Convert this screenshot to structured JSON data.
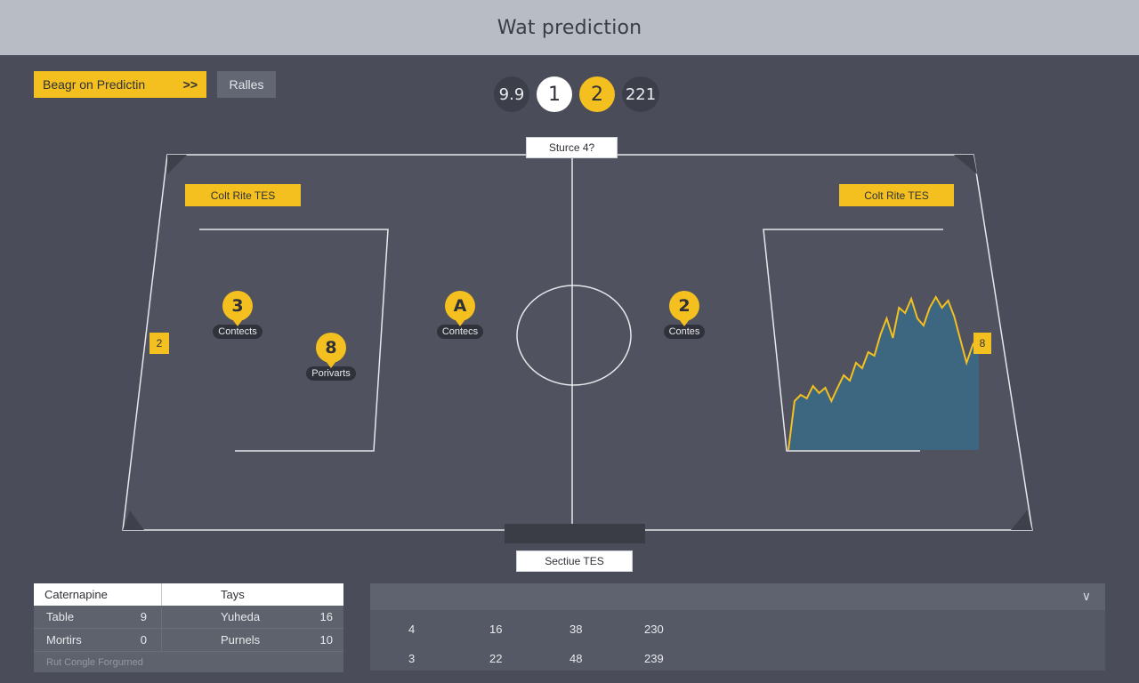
{
  "header": {
    "title": "Wat prediction"
  },
  "toolbar": {
    "primary_label": "Beagr on Predictin",
    "primary_chevron": ">>",
    "secondary_label": "Ralles"
  },
  "scoreboard": [
    "9.9",
    "1",
    "2",
    "221"
  ],
  "field": {
    "top_label": "Sturce 4?",
    "bottom_label": "Sectiue TES",
    "left_tag": "Colt Rite TES",
    "right_tag": "Colt Rite TES",
    "left_side_tag": "2",
    "right_side_tag": "8",
    "markers": [
      {
        "value": "3",
        "caption": "Contects"
      },
      {
        "value": "8",
        "caption": "Porivarts"
      },
      {
        "value": "A",
        "caption": "Contecs"
      },
      {
        "value": "2",
        "caption": "Contes"
      }
    ]
  },
  "colors": {
    "accent": "#f4c020",
    "background": "#4a4d59",
    "header": "#b7bcc5",
    "chart_fill": "#3d6680"
  },
  "stats_table": {
    "headers": [
      "Caternapine",
      "Tays"
    ],
    "rows": [
      [
        "Table",
        "9",
        "Yuheda",
        "16"
      ],
      [
        "Mortirs",
        "0",
        "Purnels",
        "10"
      ]
    ],
    "footer": "Rut Congle Forgurned"
  },
  "data_panel": {
    "chevron": "∨",
    "rows": [
      [
        "4",
        "16",
        "38",
        "230"
      ],
      [
        "3",
        "22",
        "48",
        "239"
      ]
    ]
  },
  "chart_data": {
    "type": "area",
    "values": [
      0,
      55,
      62,
      58,
      72,
      64,
      70,
      55,
      70,
      84,
      78,
      98,
      92,
      110,
      106,
      130,
      148,
      126,
      160,
      154,
      170,
      148,
      140,
      160,
      172,
      160,
      168,
      150,
      124,
      98,
      118,
      130
    ]
  }
}
